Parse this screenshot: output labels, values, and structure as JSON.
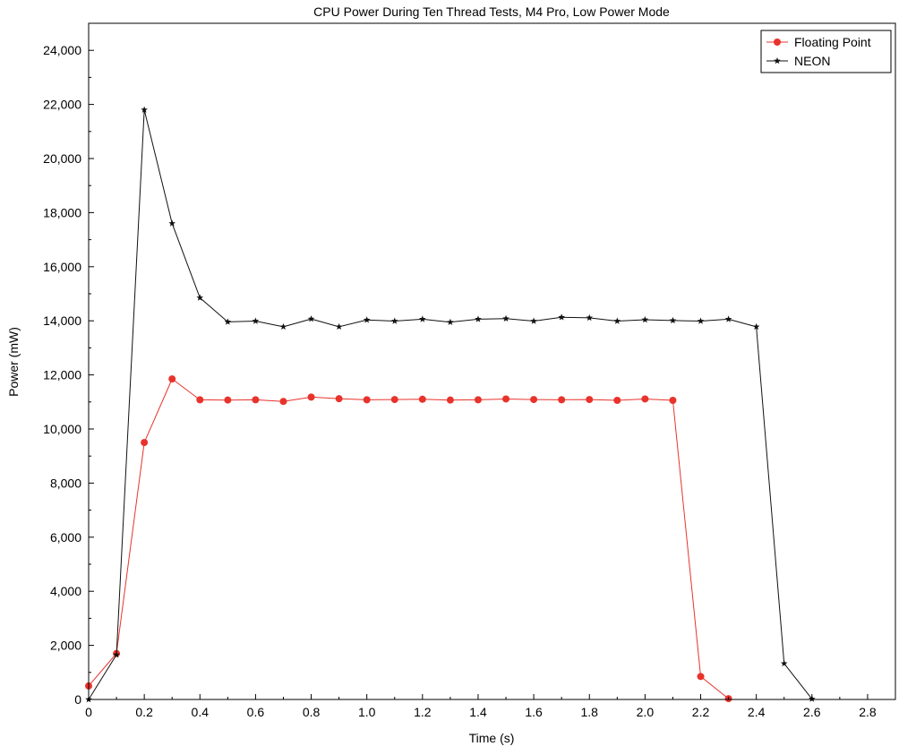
{
  "chart_data": {
    "type": "line",
    "title": "CPU Power During Ten Thread Tests, M4 Pro, Low Power Mode",
    "xlabel": "Time (s)",
    "ylabel": "Power (mW)",
    "xlim": [
      0,
      2.9
    ],
    "ylim": [
      0,
      25000
    ],
    "x_ticks": [
      "0",
      "0.2",
      "0.4",
      "0.6",
      "0.8",
      "1.0",
      "1.2",
      "1.4",
      "1.6",
      "1.8",
      "2.0",
      "2.2",
      "2.4",
      "2.6",
      "2.8"
    ],
    "y_ticks": [
      "0",
      "2,000",
      "4,000",
      "6,000",
      "8,000",
      "10,000",
      "12,000",
      "14,000",
      "16,000",
      "18,000",
      "20,000",
      "22,000",
      "24,000"
    ],
    "grid": false,
    "legend_position": "top-right",
    "series": [
      {
        "name": "Floating Point",
        "color": "#e8332c",
        "marker": "circle",
        "x": [
          0,
          0.1,
          0.2,
          0.3,
          0.4,
          0.5,
          0.6,
          0.7,
          0.8,
          0.9,
          1.0,
          1.1,
          1.2,
          1.3,
          1.4,
          1.5,
          1.6,
          1.7,
          1.8,
          1.9,
          2.0,
          2.1,
          2.2,
          2.3
        ],
        "y": [
          500,
          1700,
          9500,
          11850,
          11080,
          11070,
          11080,
          11020,
          11180,
          11120,
          11080,
          11090,
          11100,
          11070,
          11080,
          11110,
          11090,
          11080,
          11090,
          11060,
          11110,
          11060,
          850,
          30
        ]
      },
      {
        "name": "NEON",
        "color": "#111111",
        "marker": "star",
        "x": [
          0,
          0.1,
          0.2,
          0.3,
          0.4,
          0.5,
          0.6,
          0.7,
          0.8,
          0.9,
          1.0,
          1.1,
          1.2,
          1.3,
          1.4,
          1.5,
          1.6,
          1.7,
          1.8,
          1.9,
          2.0,
          2.1,
          2.2,
          2.3,
          2.4,
          2.5,
          2.6
        ],
        "y": [
          0,
          1650,
          21800,
          17600,
          14850,
          13960,
          13990,
          13780,
          14070,
          13780,
          14030,
          13990,
          14060,
          13950,
          14060,
          14080,
          13990,
          14130,
          14110,
          13990,
          14040,
          14010,
          13990,
          14060,
          13780,
          1330,
          20
        ]
      }
    ]
  }
}
